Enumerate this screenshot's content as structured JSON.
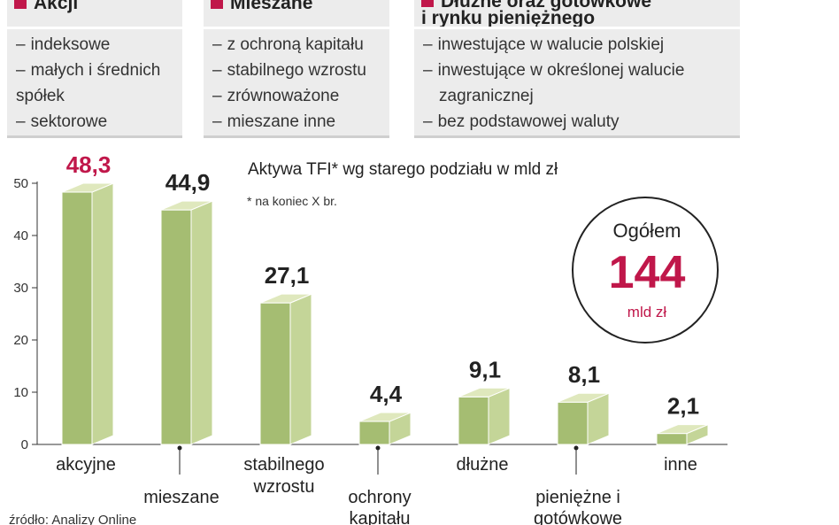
{
  "categories_panel": {
    "accent_color": "#c0174a",
    "boxes": [
      {
        "title_lines": [
          "Akcji"
        ],
        "items": [
          [
            "indeksowe"
          ],
          [
            "małych i średnich",
            "spółek"
          ],
          [
            "sektorowe"
          ]
        ]
      },
      {
        "title_lines": [
          "Mieszane"
        ],
        "items": [
          [
            "z ochroną kapitału"
          ],
          [
            "stabilnego wzrostu"
          ],
          [
            "zrównoważone"
          ],
          [
            "mieszane inne"
          ]
        ]
      },
      {
        "title_lines": [
          "Dłużne oraz gotówkowe",
          "i rynku pieniężnego"
        ],
        "items": [
          [
            "inwestujące w walucie polskiej"
          ],
          [
            "inwestujące w określonej walucie",
            "zagranicznej"
          ],
          [
            "bez podstawowej waluty"
          ]
        ]
      }
    ]
  },
  "chart_data": {
    "type": "bar",
    "title": "Aktywa TFI* wg starego podziału w mld zł",
    "note": "* na koniec X br.",
    "categories": [
      [
        "akcyjne"
      ],
      [
        "mieszane"
      ],
      [
        "stabilnego",
        "wzrostu"
      ],
      [
        "ochrony",
        "kapitału"
      ],
      [
        "dłużne"
      ],
      [
        "pieniężne i",
        "gotówkowe"
      ],
      [
        "inne"
      ]
    ],
    "category_label_position": [
      "high",
      "low",
      "high",
      "low",
      "high",
      "low",
      "high"
    ],
    "values": [
      48.3,
      44.9,
      27.1,
      4.4,
      9.1,
      8.1,
      2.1
    ],
    "value_labels": [
      "48,3",
      "44,9",
      "27,1",
      "4,4",
      "9,1",
      "8,1",
      "2,1"
    ],
    "highlight_index": 0,
    "ylim": [
      0,
      50
    ],
    "yticks": [
      0,
      10,
      20,
      30,
      40,
      50
    ],
    "ytick_labels": [
      "0",
      "10",
      "20",
      "30",
      "40",
      "50"
    ],
    "grid": false,
    "colors": {
      "bar_front": "#a5bd72",
      "bar_side": "#c4d598",
      "bar_top": "#dfe8bd",
      "bar_edge": "#ffffff",
      "highlight_value": "#c0174a"
    },
    "total": {
      "label": "Ogółem",
      "value": "144",
      "unit": "mld zł"
    }
  },
  "source": "źródło: Analizy Online"
}
